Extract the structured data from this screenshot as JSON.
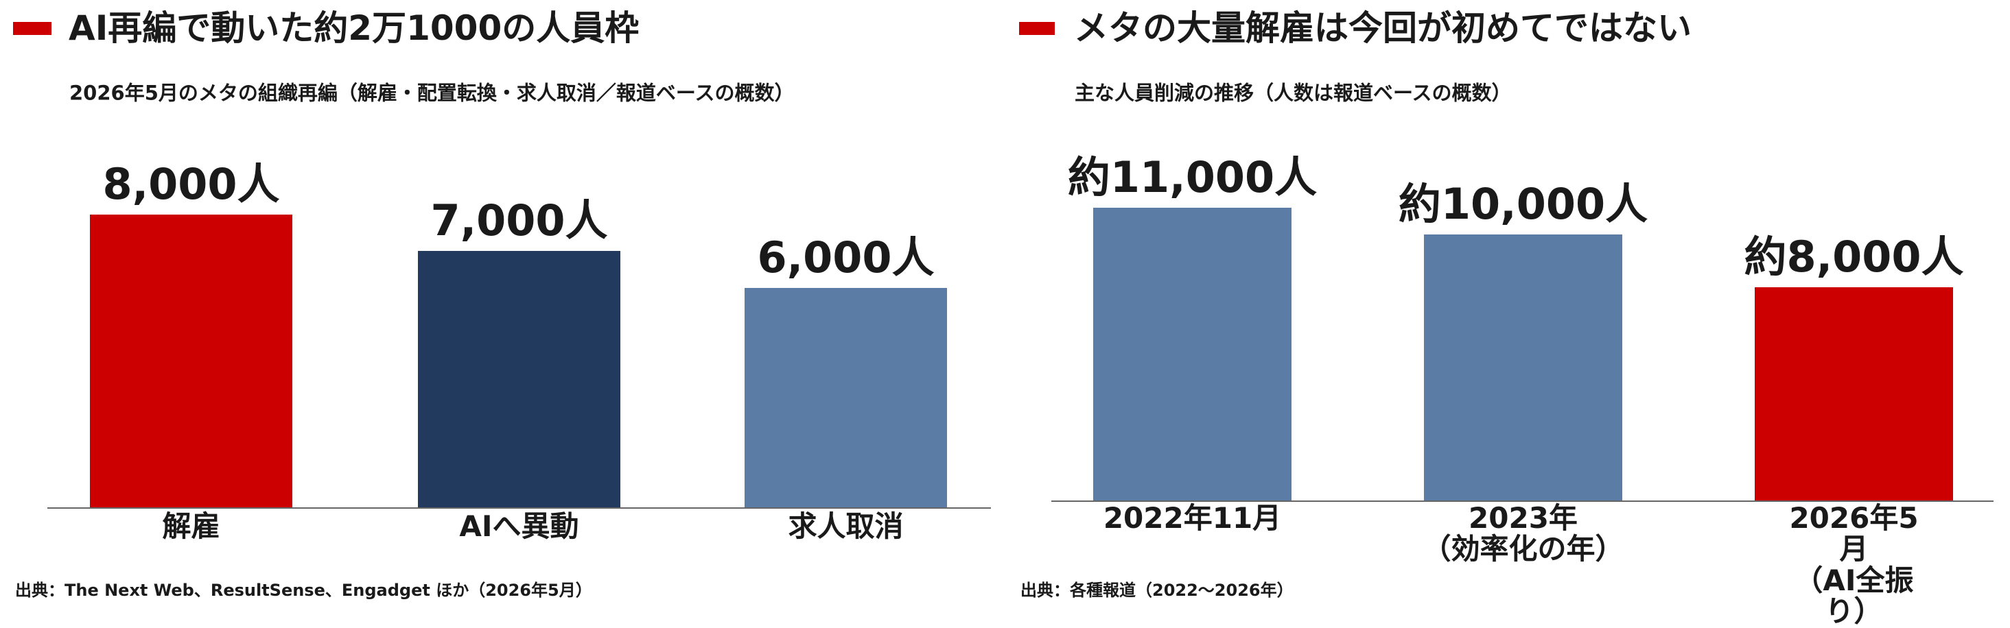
{
  "chart_data": [
    {
      "type": "bar",
      "title": "AI再編で動いた約2万1000の人員枠",
      "subtitle": "2026年5月のメタの組織再編（解雇・配置転換・求人取消／報道ベースの概数）",
      "categories": [
        "解雇",
        "AIへ異動",
        "求人取消"
      ],
      "values": [
        8000,
        7000,
        6000
      ],
      "value_labels": [
        "8,000人",
        "7,000人",
        "6,000人"
      ],
      "colors": [
        "#cc0000",
        "#223a5e",
        "#5b7ca5"
      ],
      "source": "出典：The Next Web、ResultSense、Engadget ほか（2026年5月）"
    },
    {
      "type": "bar",
      "title": "メタの大量解雇は今回が初めてではない",
      "subtitle": "主な人員削減の推移（人数は報道ベースの概数）",
      "categories": [
        "2022年11月",
        "2023年\n（効率化の年）",
        "2026年5月\n（AI全振り）"
      ],
      "values": [
        11000,
        10000,
        8000
      ],
      "value_labels": [
        "約11,000人",
        "約10,000人",
        "約8,000人"
      ],
      "colors": [
        "#5b7ca5",
        "#5b7ca5",
        "#cc0000"
      ],
      "source": "出典：各種報道（2022～2026年）"
    }
  ]
}
